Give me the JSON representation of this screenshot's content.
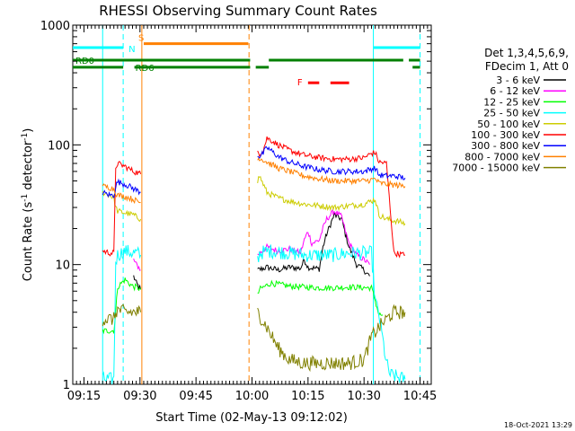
{
  "chart_data": {
    "type": "line",
    "title": "RHESSI Observing Summary Count Rates",
    "xlabel": "Start Time (02-May-13 09:12:02)",
    "ylabel_main": "Count Rate (s",
    "ylabel_sup1": "-1",
    "ylabel_mid": " detector",
    "ylabel_sup2": "-1",
    "ylabel_end": ")",
    "y_scale": "log",
    "ylim": [
      1,
      1000
    ],
    "xlim_minutes": [
      0,
      96
    ],
    "x_ticks": [
      {
        "minute": 3,
        "label": "09:15"
      },
      {
        "minute": 18,
        "label": "09:30"
      },
      {
        "minute": 33,
        "label": "09:45"
      },
      {
        "minute": 48,
        "label": "10:00"
      },
      {
        "minute": 63,
        "label": "10:15"
      },
      {
        "minute": 78,
        "label": "10:30"
      },
      {
        "minute": 93,
        "label": "10:45"
      }
    ],
    "y_ticks": [
      {
        "value": 1,
        "label": "1"
      },
      {
        "value": 10,
        "label": "10"
      },
      {
        "value": 100,
        "label": "100"
      },
      {
        "value": 1000,
        "label": "1000"
      }
    ],
    "legend_header": [
      "Det 1,3,4,5,6,9,",
      "FDecim 1, Att 0"
    ],
    "legend_placement": "right",
    "series": [
      {
        "name": "3 - 6 keV",
        "color": "#000000",
        "points": [
          [
            16.3,
            8
          ],
          [
            17,
            7
          ],
          [
            17.7,
            6.5
          ],
          [
            18.2,
            6.2
          ],
          null,
          [
            49.5,
            9
          ],
          [
            52,
            9.5
          ],
          [
            55,
            9
          ],
          [
            58,
            9.5
          ],
          [
            61,
            9.3
          ],
          [
            62,
            11
          ],
          [
            63,
            9.5
          ],
          [
            66,
            9.2
          ],
          [
            67,
            14
          ],
          [
            68,
            18
          ],
          [
            70,
            26
          ],
          [
            72,
            24
          ],
          [
            73,
            18
          ],
          [
            74,
            14
          ],
          [
            76,
            10
          ],
          [
            78,
            9
          ],
          [
            79.5,
            8
          ]
        ]
      },
      {
        "name": "6 - 12 keV",
        "color": "#ff00ff",
        "points": [
          [
            16.3,
            11
          ],
          [
            17,
            10
          ],
          [
            17.7,
            9.5
          ],
          [
            18.2,
            9
          ],
          null,
          [
            49.5,
            12
          ],
          [
            52,
            14
          ],
          [
            55,
            13
          ],
          [
            58,
            13.5
          ],
          [
            61,
            12.5
          ],
          [
            62,
            16
          ],
          [
            63,
            19
          ],
          [
            64,
            15
          ],
          [
            66,
            16
          ],
          [
            67,
            20
          ],
          [
            68,
            24
          ],
          [
            70,
            28
          ],
          [
            72,
            25
          ],
          [
            73,
            19
          ],
          [
            74,
            15
          ],
          [
            76,
            12
          ],
          [
            78,
            11
          ],
          [
            79.5,
            10
          ]
        ]
      },
      {
        "name": "12 - 25 keV",
        "color": "#00ff00",
        "points": [
          [
            8,
            2.8
          ],
          [
            10,
            2.8
          ],
          [
            11,
            2.8
          ],
          [
            11.5,
            4
          ],
          [
            12,
            6.5
          ],
          [
            14,
            7.5
          ],
          [
            15,
            7
          ],
          [
            16.3,
            6.5
          ],
          [
            17,
            6.5
          ],
          [
            18.2,
            6.2
          ],
          null,
          [
            49.5,
            5.5
          ],
          [
            50,
            6.2
          ],
          [
            53,
            7
          ],
          [
            58,
            6.6
          ],
          [
            62,
            6.5
          ],
          [
            66,
            6.4
          ],
          [
            70,
            6.4
          ],
          [
            74,
            6.5
          ],
          [
            79,
            6.4
          ],
          [
            80,
            6.4
          ],
          [
            81,
            5
          ],
          [
            82,
            3.8
          ],
          [
            83,
            3.8
          ]
        ]
      },
      {
        "name": "25 - 50 keV",
        "color": "#00ffff",
        "points": [
          [
            8,
            1.1
          ],
          [
            11,
            1.1
          ],
          [
            11.5,
            10.5
          ],
          [
            12,
            12
          ],
          [
            14,
            13
          ],
          [
            16.3,
            12.5
          ],
          [
            17,
            12.5
          ],
          [
            18.2,
            12
          ],
          null,
          [
            49.5,
            11
          ],
          [
            50,
            12.5
          ],
          [
            53,
            13
          ],
          [
            58,
            12.5
          ],
          [
            62,
            12
          ],
          [
            66,
            12
          ],
          [
            70,
            12
          ],
          [
            74,
            12.5
          ],
          [
            79,
            12.5
          ],
          [
            80,
            12.5
          ],
          [
            81,
            5
          ],
          [
            82,
            3.8
          ],
          [
            84,
            1.5
          ],
          [
            85,
            1.2
          ],
          [
            89,
            1.1
          ]
        ]
      },
      {
        "name": "50 - 100 keV",
        "color": "#cccc00",
        "points": [
          [
            8,
            40
          ],
          [
            10,
            38
          ],
          [
            11,
            36
          ],
          [
            11.5,
            30
          ],
          [
            12,
            28
          ],
          [
            14,
            27
          ],
          [
            16.3,
            26
          ],
          [
            17,
            25
          ],
          [
            18.2,
            24
          ],
          null,
          [
            49.5,
            50
          ],
          [
            50,
            55
          ],
          [
            52,
            40
          ],
          [
            55,
            36
          ],
          [
            58,
            34
          ],
          [
            62,
            32
          ],
          [
            66,
            31
          ],
          [
            70,
            30
          ],
          [
            74,
            31
          ],
          [
            78,
            32
          ],
          [
            80,
            34
          ],
          [
            81,
            35
          ],
          [
            82,
            26
          ],
          [
            84,
            24
          ],
          [
            87,
            23
          ],
          [
            89,
            22
          ]
        ]
      },
      {
        "name": "100 - 300 keV",
        "color": "#ff0000",
        "points": [
          [
            8,
            13
          ],
          [
            10,
            12.5
          ],
          [
            11,
            12.5
          ],
          [
            11.5,
            65
          ],
          [
            12,
            70
          ],
          [
            13,
            68
          ],
          [
            14,
            66
          ],
          [
            16.3,
            60
          ],
          [
            17,
            59
          ],
          [
            18.2,
            57
          ],
          null,
          [
            49.5,
            88
          ],
          [
            50,
            85
          ],
          [
            51,
            90
          ],
          [
            52,
            114
          ],
          [
            53,
            110
          ],
          [
            55,
            100
          ],
          [
            58,
            90
          ],
          [
            62,
            82
          ],
          [
            66,
            78
          ],
          [
            70,
            76
          ],
          [
            74,
            76
          ],
          [
            78,
            78
          ],
          [
            80,
            85
          ],
          [
            81,
            86
          ],
          [
            82,
            72
          ],
          [
            84,
            70
          ],
          [
            86,
            12.5
          ],
          [
            89,
            12
          ]
        ]
      },
      {
        "name": "300 - 800 keV",
        "color": "#0000ff",
        "points": [
          [
            8,
            40
          ],
          [
            10,
            38
          ],
          [
            11,
            38
          ],
          [
            11.5,
            45
          ],
          [
            12,
            49
          ],
          [
            13,
            48
          ],
          [
            14,
            47
          ],
          [
            16.3,
            43
          ],
          [
            17,
            42
          ],
          [
            18.2,
            40
          ],
          null,
          [
            49.5,
            83
          ],
          [
            50,
            80
          ],
          [
            51,
            85
          ],
          [
            52,
            95
          ],
          [
            53,
            90
          ],
          [
            55,
            80
          ],
          [
            58,
            72
          ],
          [
            62,
            66
          ],
          [
            66,
            62
          ],
          [
            70,
            60
          ],
          [
            74,
            60
          ],
          [
            78,
            60
          ],
          [
            80,
            63
          ],
          [
            81,
            64
          ],
          [
            82,
            56
          ],
          [
            84,
            55
          ],
          [
            86,
            55
          ],
          [
            89,
            53
          ]
        ]
      },
      {
        "name": "800 - 7000 keV",
        "color": "#ff8000",
        "points": [
          [
            8,
            45
          ],
          [
            10,
            44
          ],
          [
            11,
            43
          ],
          [
            11.5,
            40
          ],
          [
            12,
            38
          ],
          [
            14,
            37
          ],
          [
            16.3,
            35
          ],
          [
            17,
            34
          ],
          [
            18.2,
            33
          ],
          null,
          [
            49.5,
            75
          ],
          [
            50,
            78
          ],
          [
            52,
            72
          ],
          [
            55,
            64
          ],
          [
            58,
            60
          ],
          [
            62,
            55
          ],
          [
            66,
            52
          ],
          [
            70,
            50
          ],
          [
            74,
            50
          ],
          [
            78,
            50
          ],
          [
            80,
            51
          ],
          [
            81,
            52
          ],
          [
            82,
            48
          ],
          [
            84,
            47
          ],
          [
            87,
            46
          ],
          [
            89,
            45
          ]
        ]
      },
      {
        "name": "7000 - 15000 keV",
        "color": "#808000",
        "points": [
          [
            8,
            3.5
          ],
          [
            11,
            3.5
          ],
          [
            11.5,
            4
          ],
          [
            12,
            4.2
          ],
          [
            14,
            4
          ],
          [
            16.3,
            4
          ],
          [
            17,
            4
          ],
          [
            18.2,
            4
          ],
          null,
          [
            49.5,
            4
          ],
          [
            52,
            3
          ],
          [
            55,
            2
          ],
          [
            58,
            1.6
          ],
          [
            62,
            1.5
          ],
          [
            66,
            1.5
          ],
          [
            70,
            1.5
          ],
          [
            74,
            1.5
          ],
          [
            78,
            1.6
          ],
          [
            80,
            2.5
          ],
          [
            82,
            3
          ],
          [
            84,
            3.5
          ],
          [
            86,
            4
          ],
          [
            89,
            4
          ]
        ]
      }
    ],
    "flags": [
      {
        "name": "S",
        "color": "#ff8000",
        "label": "S",
        "value": 700,
        "segments": [
          [
            19,
            47
          ]
        ]
      },
      {
        "name": "N",
        "color": "#00ffff",
        "label": "N",
        "value": 650,
        "segments": [
          [
            0,
            13.5
          ],
          [
            80.5,
            93
          ]
        ]
      },
      {
        "name": "F",
        "color": "#ff0000",
        "label": "F",
        "value": 330,
        "segments": [
          [
            63,
            66
          ],
          [
            69,
            74
          ]
        ]
      },
      {
        "name": "RD0",
        "color": "#008000",
        "label": "RD0",
        "value": 510,
        "segments": [
          [
            0,
            47.5
          ],
          [
            52.5,
            88.5
          ],
          [
            90,
            93
          ]
        ]
      },
      {
        "name": "RD6",
        "color": "#008000",
        "label": "RD6",
        "value": 445,
        "segments": [
          [
            0,
            13.5
          ],
          [
            16.5,
            47.5
          ],
          [
            49,
            52.5
          ],
          [
            91,
            93
          ]
        ]
      }
    ],
    "vertical_markers": [
      {
        "kind": "solid",
        "color": "#ff8000",
        "minute": 18.5
      },
      {
        "kind": "dashed",
        "color": "#ff8000",
        "minute": 47.2
      },
      {
        "kind": "solid",
        "color": "#00ffff",
        "minute": 8
      },
      {
        "kind": "dashed",
        "color": "#00ffff",
        "minute": 13.5
      },
      {
        "kind": "solid",
        "color": "#00ffff",
        "minute": 80.5
      },
      {
        "kind": "dashed",
        "color": "#00ffff",
        "minute": 93
      }
    ],
    "timestamp": "18-Oct-2021 13:29"
  }
}
